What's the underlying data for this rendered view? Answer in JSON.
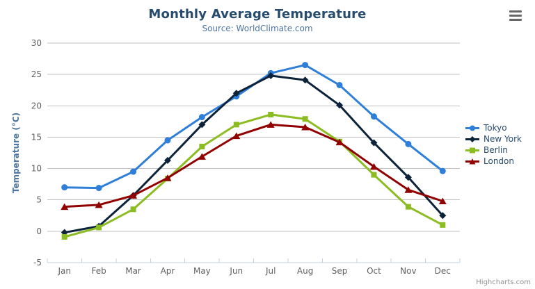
{
  "chart_data": {
    "type": "line",
    "title": "Monthly Average Temperature",
    "subtitle": "Source: WorldClimate.com",
    "categories": [
      "Jan",
      "Feb",
      "Mar",
      "Apr",
      "May",
      "Jun",
      "Jul",
      "Aug",
      "Sep",
      "Oct",
      "Nov",
      "Dec"
    ],
    "series": [
      {
        "name": "Tokyo",
        "color": "#2f7ed8",
        "marker": "circle",
        "values": [
          7.0,
          6.9,
          9.5,
          14.5,
          18.2,
          21.5,
          25.2,
          26.5,
          23.3,
          18.3,
          13.9,
          9.6
        ]
      },
      {
        "name": "New York",
        "color": "#0d233a",
        "marker": "diamond",
        "values": [
          -0.2,
          0.8,
          5.7,
          11.3,
          17.0,
          22.0,
          24.8,
          24.1,
          20.1,
          14.1,
          8.6,
          2.5
        ]
      },
      {
        "name": "Berlin",
        "color": "#8bbc21",
        "marker": "square",
        "values": [
          -0.9,
          0.6,
          3.5,
          8.4,
          13.5,
          17.0,
          18.6,
          17.9,
          14.3,
          9.0,
          3.9,
          1.0
        ]
      },
      {
        "name": "London",
        "color": "#910000",
        "marker": "triangle",
        "values": [
          3.9,
          4.2,
          5.7,
          8.5,
          11.9,
          15.2,
          17.0,
          16.6,
          14.2,
          10.3,
          6.6,
          4.8
        ]
      }
    ],
    "xlabel": "",
    "ylabel": "Temperature (°C)",
    "ylim": [
      -5,
      30
    ],
    "y_tick_interval": 5,
    "grid": true,
    "legend_position": "right"
  },
  "credits": {
    "label": "Highcharts.com"
  },
  "colors": {
    "background": "#ffffff",
    "grid": "#c0c0c0",
    "axis_line": "#c0d0e0",
    "tick": "#c0d0e0",
    "title": "#274b6d",
    "subtitle": "#4d759e",
    "axis_label": "#606060",
    "axis_title": "#4d759e",
    "legend_text": "#274b6d",
    "credits_text": "#909090",
    "menu_icon": "#666666"
  }
}
